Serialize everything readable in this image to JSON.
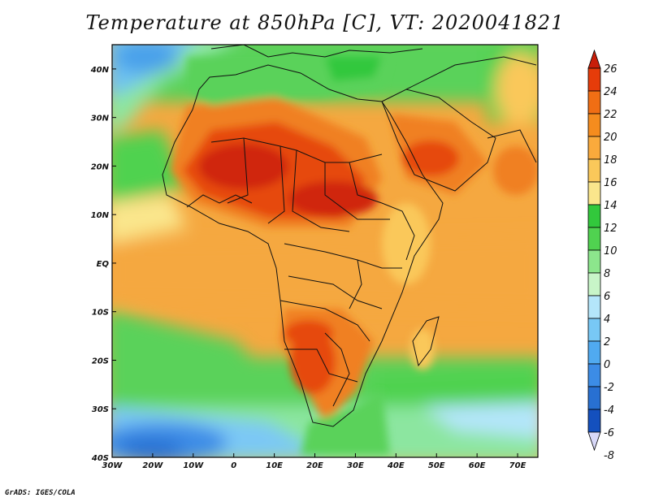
{
  "title": "Temperature at 850hPa [C], VT: 2020041821",
  "credit": "GrADS: IGES/COLA",
  "map": {
    "lon_labels": [
      "30W",
      "20W",
      "10W",
      "0",
      "10E",
      "20E",
      "30E",
      "40E",
      "50E",
      "60E",
      "70E"
    ],
    "lat_labels": [
      "40N",
      "30N",
      "20N",
      "10N",
      "EQ",
      "10S",
      "20S",
      "30S",
      "40S"
    ],
    "lon_range": [
      -30,
      75
    ],
    "lat_range": [
      -40,
      45
    ]
  },
  "colorbar": {
    "labels": [
      "26",
      "24",
      "22",
      "20",
      "18",
      "16",
      "14",
      "12",
      "10",
      "8",
      "6",
      "4",
      "2",
      "0",
      "-2",
      "-4",
      "-6",
      "-8"
    ],
    "colors": [
      "#c81e0a",
      "#e63c0a",
      "#f06e14",
      "#f58c1e",
      "#faaa3c",
      "#fac85a",
      "#fae68c",
      "#32c83c",
      "#50d250",
      "#8ce68c",
      "#c8f5c8",
      "#b4e6fa",
      "#78c8f5",
      "#50aaf0",
      "#3c8ce6",
      "#2870d2",
      "#1450be",
      "#0a1e78"
    ]
  },
  "chart_data": {
    "type": "heatmap",
    "title": "Temperature at 850hPa [C], VT: 2020041821",
    "x_ticks": [
      "30W",
      "20W",
      "10W",
      "0",
      "10E",
      "20E",
      "30E",
      "40E",
      "50E",
      "60E",
      "70E"
    ],
    "y_ticks": [
      "40N",
      "30N",
      "20N",
      "10N",
      "EQ",
      "10S",
      "20S",
      "30S",
      "40S"
    ],
    "xlim": [
      -30,
      75
    ],
    "ylim": [
      -40,
      45
    ],
    "colorbar_levels": [
      26,
      24,
      22,
      20,
      18,
      16,
      14,
      12,
      10,
      8,
      6,
      4,
      2,
      0,
      -2,
      -4,
      -6,
      -8
    ]
  }
}
